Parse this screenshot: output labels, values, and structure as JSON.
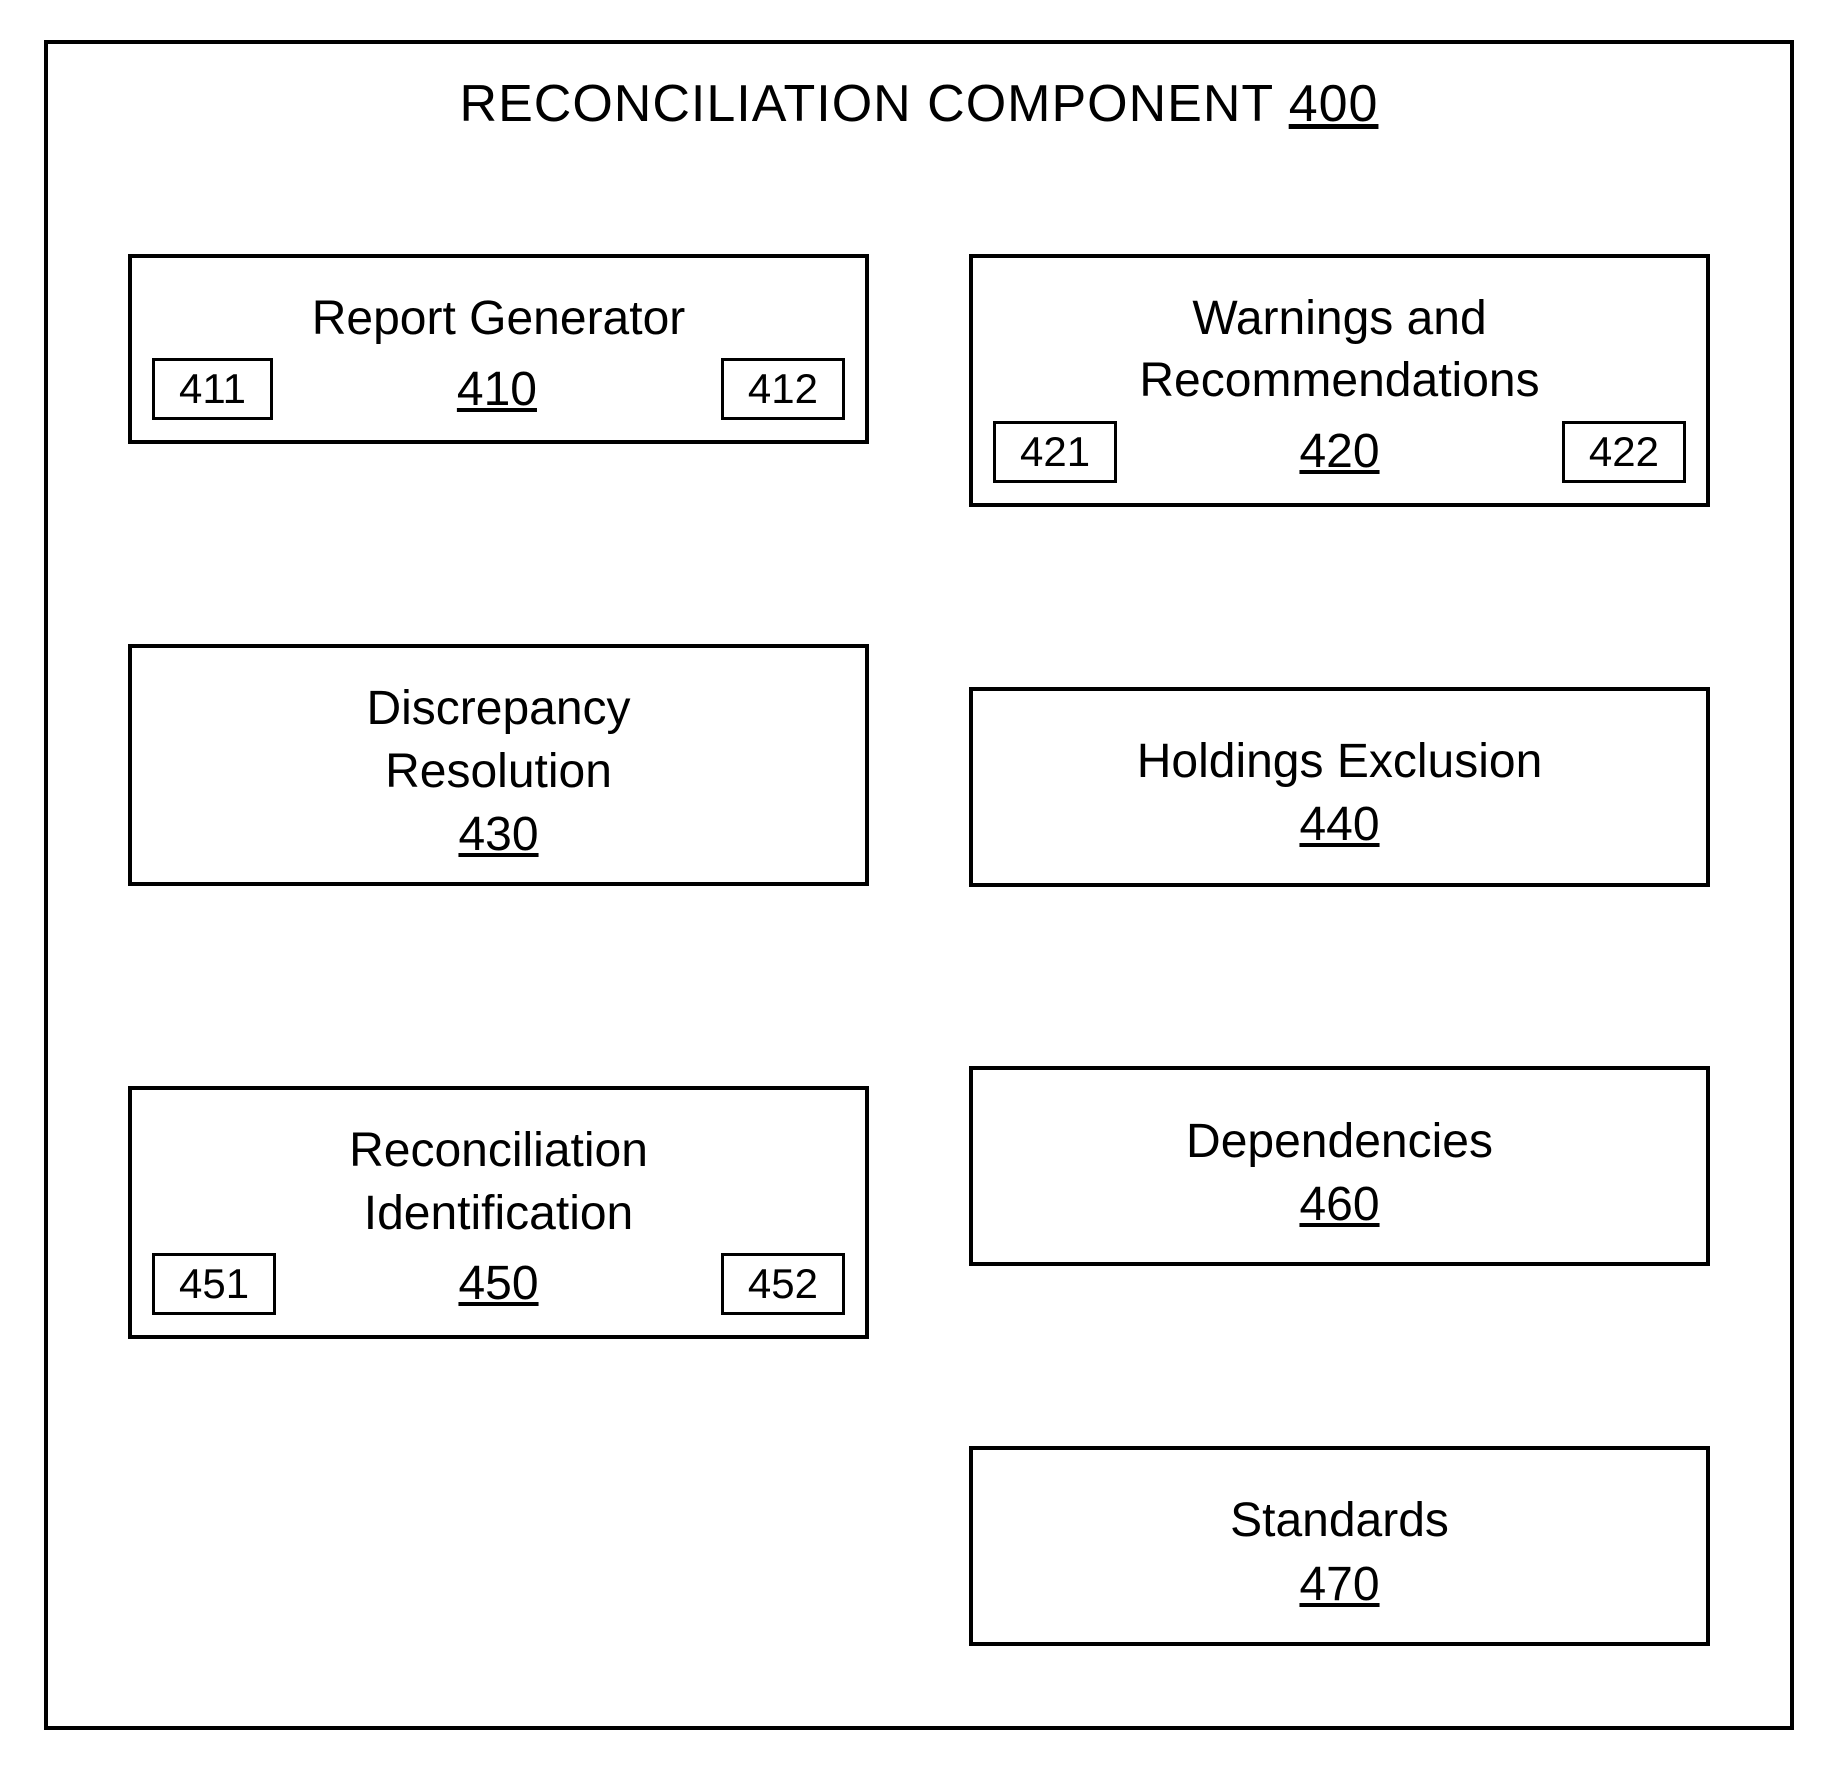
{
  "title": {
    "text": "RECONCILIATION COMPONENT",
    "ref": "400"
  },
  "left_column": [
    {
      "label": "Report Generator",
      "ref": "410",
      "subs": [
        "411",
        "412"
      ],
      "has_subs": true
    },
    {
      "label": "Discrepancy\nResolution",
      "ref": "430",
      "has_subs": false
    },
    {
      "label": "Reconciliation\nIdentification",
      "ref": "450",
      "subs": [
        "451",
        "452"
      ],
      "has_subs": true
    }
  ],
  "right_column": [
    {
      "label": "Warnings and\nRecommendations",
      "ref": "420",
      "subs": [
        "421",
        "422"
      ],
      "has_subs": true
    },
    {
      "label": "Holdings Exclusion",
      "ref": "440",
      "has_subs": false
    },
    {
      "label": "Dependencies",
      "ref": "460",
      "has_subs": false
    },
    {
      "label": "Standards",
      "ref": "470",
      "has_subs": false
    }
  ],
  "style": {
    "border_color": "#000000",
    "background_color": "#ffffff",
    "font_family": "Arial",
    "title_fontsize": 52,
    "label_fontsize": 48,
    "sub_fontsize": 42,
    "border_width": 4,
    "sub_border_width": 3
  }
}
